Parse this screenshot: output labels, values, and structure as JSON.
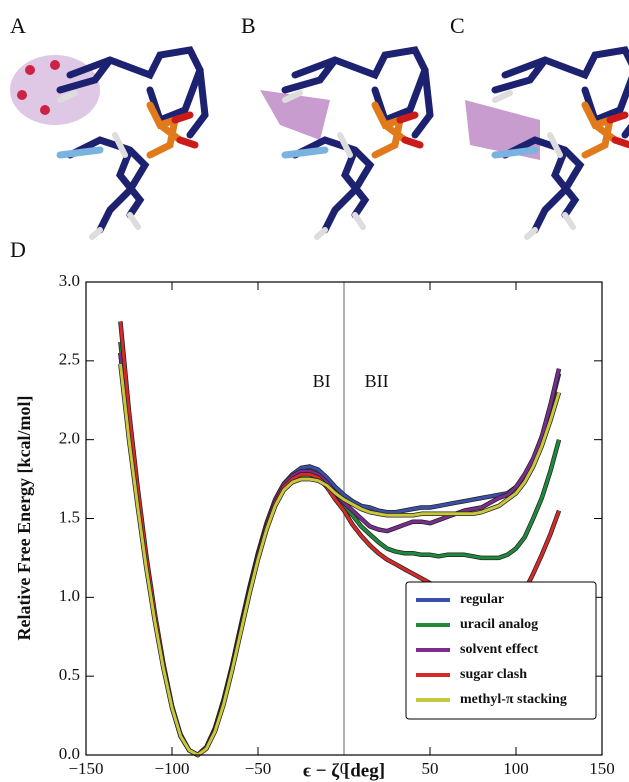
{
  "panel_labels": [
    "A",
    "B",
    "C",
    "D"
  ],
  "chart_data": {
    "type": "line",
    "xlabel": "ϵ − ζ [deg]",
    "ylabel": "Relative Free Energy [kcal/mol]",
    "annotations": [
      {
        "text": "BI",
        "x": -13,
        "y": 2.36
      },
      {
        "text": "BII",
        "x": 19,
        "y": 2.36
      }
    ],
    "vlines": [
      0
    ],
    "xlim": [
      -150,
      150
    ],
    "ylim": [
      0,
      3
    ],
    "xticks": [
      {
        "value": -150,
        "label": "−150"
      },
      {
        "value": -100,
        "label": "−100"
      },
      {
        "value": -50,
        "label": "−50"
      },
      0,
      50,
      100,
      150
    ],
    "yticks": [
      {
        "value": 0,
        "label": "0.0"
      },
      {
        "value": 0.5,
        "label": "0.5"
      },
      {
        "value": 1,
        "label": "1.0"
      },
      {
        "value": 1.5,
        "label": "1.5"
      },
      {
        "value": 2,
        "label": "2.0"
      },
      {
        "value": 2.5,
        "label": "2.5"
      },
      {
        "value": 3,
        "label": "3.0"
      }
    ],
    "legend": "lower right",
    "x": [
      -130,
      -125,
      -120,
      -115,
      -110,
      -105,
      -100,
      -95,
      -90,
      -85,
      -80,
      -75,
      -70,
      -65,
      -60,
      -55,
      -50,
      -45,
      -40,
      -35,
      -30,
      -25,
      -20,
      -15,
      -10,
      -5,
      0,
      5,
      10,
      15,
      20,
      25,
      30,
      35,
      40,
      45,
      50,
      55,
      60,
      65,
      70,
      75,
      80,
      85,
      90,
      95,
      100,
      105,
      110,
      115,
      120,
      125
    ],
    "series": [
      {
        "name": "regular",
        "color": "#3b4fa6",
        "values": [
          2.55,
          2.05,
          1.62,
          1.22,
          0.87,
          0.56,
          0.3,
          0.12,
          0.03,
          0.0,
          0.05,
          0.17,
          0.35,
          0.57,
          0.82,
          1.06,
          1.28,
          1.47,
          1.62,
          1.72,
          1.78,
          1.82,
          1.83,
          1.81,
          1.76,
          1.7,
          1.65,
          1.61,
          1.58,
          1.57,
          1.55,
          1.54,
          1.54,
          1.55,
          1.56,
          1.57,
          1.57,
          1.58,
          1.59,
          1.6,
          1.61,
          1.62,
          1.63,
          1.64,
          1.65,
          1.66,
          1.7,
          1.76,
          1.87,
          2.01,
          2.2,
          2.42
        ]
      },
      {
        "name": "uracil analog",
        "color": "#1f8a3c",
        "values": [
          2.62,
          2.1,
          1.66,
          1.25,
          0.89,
          0.57,
          0.31,
          0.12,
          0.03,
          0.0,
          0.05,
          0.16,
          0.34,
          0.56,
          0.8,
          1.04,
          1.26,
          1.45,
          1.6,
          1.7,
          1.75,
          1.78,
          1.78,
          1.76,
          1.7,
          1.64,
          1.58,
          1.52,
          1.45,
          1.4,
          1.35,
          1.31,
          1.29,
          1.28,
          1.28,
          1.27,
          1.27,
          1.26,
          1.27,
          1.27,
          1.27,
          1.26,
          1.25,
          1.25,
          1.25,
          1.27,
          1.31,
          1.38,
          1.5,
          1.63,
          1.8,
          2.0
        ]
      },
      {
        "name": "solvent effect",
        "color": "#7a2d8c",
        "values": [
          2.55,
          2.06,
          1.63,
          1.23,
          0.88,
          0.57,
          0.31,
          0.13,
          0.03,
          0.0,
          0.05,
          0.17,
          0.35,
          0.57,
          0.82,
          1.06,
          1.28,
          1.47,
          1.62,
          1.72,
          1.77,
          1.8,
          1.8,
          1.78,
          1.73,
          1.66,
          1.6,
          1.55,
          1.5,
          1.45,
          1.43,
          1.42,
          1.44,
          1.46,
          1.48,
          1.48,
          1.47,
          1.49,
          1.51,
          1.53,
          1.55,
          1.56,
          1.57,
          1.6,
          1.63,
          1.65,
          1.7,
          1.78,
          1.88,
          2.02,
          2.22,
          2.45
        ]
      },
      {
        "name": "sugar clash",
        "color": "#d42a2a",
        "values": [
          2.75,
          2.18,
          1.7,
          1.27,
          0.9,
          0.58,
          0.31,
          0.12,
          0.03,
          0.0,
          0.05,
          0.16,
          0.34,
          0.56,
          0.8,
          1.04,
          1.26,
          1.45,
          1.6,
          1.7,
          1.75,
          1.78,
          1.78,
          1.76,
          1.7,
          1.62,
          1.55,
          1.46,
          1.39,
          1.33,
          1.28,
          1.24,
          1.21,
          1.18,
          1.15,
          1.12,
          1.09,
          1.06,
          1.04,
          1.02,
          1.0,
          0.98,
          0.96,
          0.95,
          0.95,
          0.95,
          0.97,
          1.04,
          1.15,
          1.27,
          1.4,
          1.55
        ]
      },
      {
        "name": "methyl-π stacking",
        "color": "#c9c83c",
        "values": [
          2.48,
          2.0,
          1.58,
          1.19,
          0.85,
          0.55,
          0.3,
          0.12,
          0.03,
          0.0,
          0.04,
          0.15,
          0.32,
          0.54,
          0.78,
          1.02,
          1.24,
          1.43,
          1.58,
          1.68,
          1.73,
          1.75,
          1.75,
          1.74,
          1.71,
          1.66,
          1.62,
          1.59,
          1.56,
          1.54,
          1.53,
          1.52,
          1.52,
          1.52,
          1.52,
          1.53,
          1.53,
          1.53,
          1.53,
          1.53,
          1.53,
          1.53,
          1.54,
          1.56,
          1.58,
          1.62,
          1.66,
          1.73,
          1.83,
          1.96,
          2.12,
          2.3
        ]
      }
    ]
  }
}
